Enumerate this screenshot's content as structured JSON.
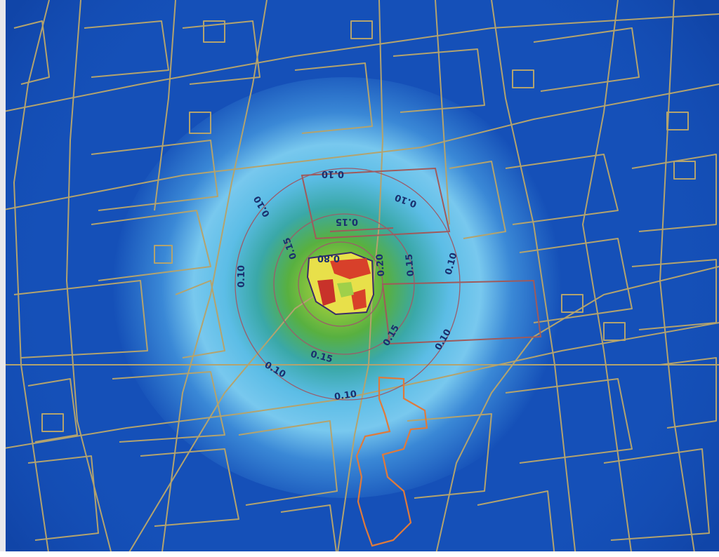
{
  "map": {
    "contour_labels": [
      {
        "id": "lbl-010-top",
        "text": "0.10"
      },
      {
        "id": "lbl-010-upright",
        "text": "0.10"
      },
      {
        "id": "lbl-010-upleft",
        "text": "0.10"
      },
      {
        "id": "lbl-015-top",
        "text": "0.15"
      },
      {
        "id": "lbl-015-left",
        "text": "0.15"
      },
      {
        "id": "lbl-080-center",
        "text": "0.80"
      },
      {
        "id": "lbl-020-right",
        "text": "0.20"
      },
      {
        "id": "lbl-015-right",
        "text": "0.15"
      },
      {
        "id": "lbl-010-right",
        "text": "0.10"
      },
      {
        "id": "lbl-010-left",
        "text": "0.10"
      },
      {
        "id": "lbl-015-lowright",
        "text": "0.15"
      },
      {
        "id": "lbl-010-lowright",
        "text": "0.10"
      },
      {
        "id": "lbl-015-bottom",
        "text": "0.15"
      },
      {
        "id": "lbl-010-lowleft",
        "text": "0.10"
      },
      {
        "id": "lbl-010-bottom",
        "text": "0.10"
      }
    ],
    "colors": {
      "background": "#1550b8",
      "parcel_lines": "#b0a070",
      "contour_lines": "#a86060",
      "hotspot_red": "#d8402a",
      "hotspot_yellow": "#e8e04a",
      "outline_orange": "#e07a3a",
      "plume_green": "#6ab43a",
      "plume_light_blue": "#7ec8ec"
    }
  }
}
